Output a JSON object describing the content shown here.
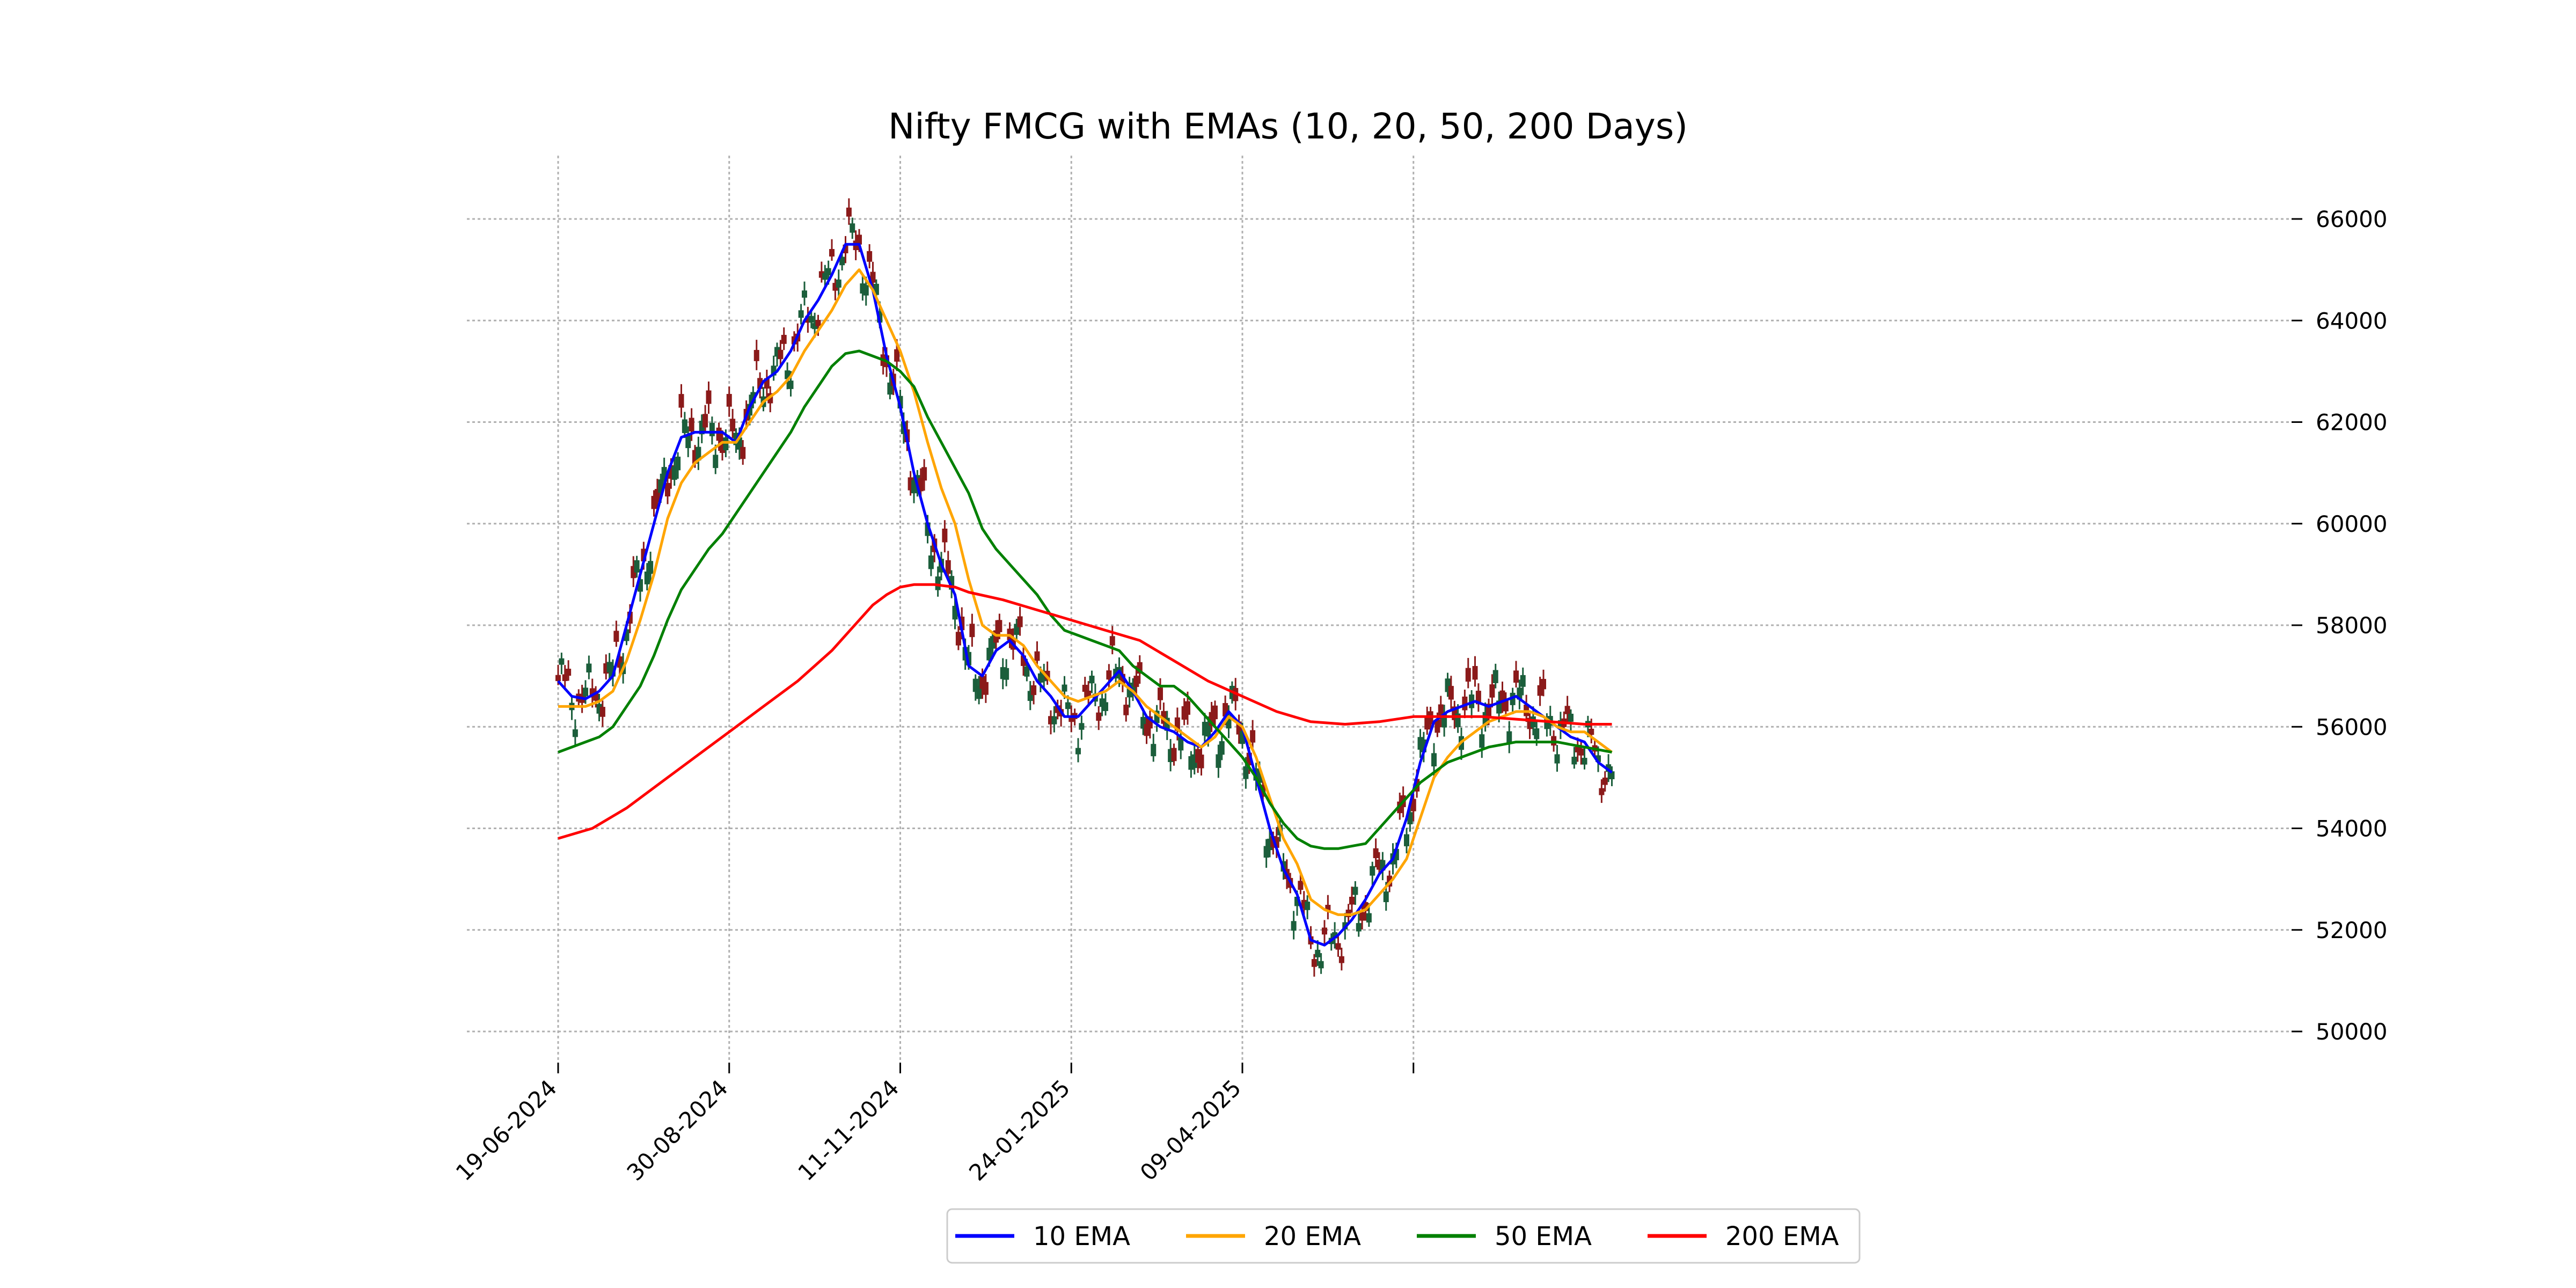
{
  "chart_data": {
    "type": "line",
    "title": "Nifty FMCG with EMAs (10, 20, 50, 200 Days)",
    "xlabel": "",
    "ylabel": "",
    "ylim": [
      49500,
      67200
    ],
    "y_ticks": [
      50000,
      52000,
      54000,
      56000,
      58000,
      60000,
      62000,
      64000,
      66000
    ],
    "x_ticks": [
      "19-06-2024",
      "30-08-2024",
      "11-11-2024",
      "24-01-2025",
      "09-04-2025",
      ""
    ],
    "x_tick_idx": [
      0,
      50,
      100,
      150,
      200,
      250
    ],
    "grid": true,
    "legend_position": "bottom-center",
    "x_count": 247,
    "candle_colors": {
      "up": "#1b5e3b",
      "down": "#8b1a1a"
    },
    "series": [
      {
        "name": "10 EMA",
        "color": "#0000ff",
        "points": [
          [
            0,
            56900
          ],
          [
            4,
            56600
          ],
          [
            8,
            56550
          ],
          [
            12,
            56700
          ],
          [
            16,
            57000
          ],
          [
            20,
            58000
          ],
          [
            24,
            59000
          ],
          [
            28,
            60000
          ],
          [
            32,
            61000
          ],
          [
            36,
            61700
          ],
          [
            40,
            61800
          ],
          [
            44,
            61800
          ],
          [
            48,
            61800
          ],
          [
            52,
            61600
          ],
          [
            56,
            62300
          ],
          [
            60,
            62800
          ],
          [
            64,
            63000
          ],
          [
            68,
            63400
          ],
          [
            72,
            64000
          ],
          [
            76,
            64400
          ],
          [
            80,
            64900
          ],
          [
            84,
            65500
          ],
          [
            88,
            65500
          ],
          [
            92,
            64600
          ],
          [
            96,
            63300
          ],
          [
            100,
            62300
          ],
          [
            104,
            61000
          ],
          [
            108,
            60000
          ],
          [
            112,
            59200
          ],
          [
            116,
            58600
          ],
          [
            120,
            57200
          ],
          [
            124,
            57000
          ],
          [
            128,
            57500
          ],
          [
            132,
            57700
          ],
          [
            136,
            57400
          ],
          [
            140,
            56900
          ],
          [
            144,
            56600
          ],
          [
            148,
            56200
          ],
          [
            152,
            56200
          ],
          [
            156,
            56500
          ],
          [
            160,
            56800
          ],
          [
            164,
            57100
          ],
          [
            168,
            56700
          ],
          [
            172,
            56200
          ],
          [
            176,
            56000
          ],
          [
            180,
            55900
          ],
          [
            184,
            55700
          ],
          [
            188,
            55600
          ],
          [
            192,
            55900
          ],
          [
            196,
            56300
          ],
          [
            200,
            56000
          ],
          [
            204,
            55000
          ],
          [
            208,
            54000
          ],
          [
            212,
            53200
          ],
          [
            216,
            52700
          ],
          [
            220,
            51800
          ],
          [
            224,
            51700
          ],
          [
            228,
            51900
          ],
          [
            232,
            52200
          ],
          [
            236,
            52600
          ],
          [
            240,
            53100
          ],
          [
            244,
            53400
          ],
          [
            248,
            54200
          ],
          [
            252,
            55300
          ],
          [
            256,
            56100
          ],
          [
            260,
            56300
          ],
          [
            264,
            56400
          ],
          [
            268,
            56500
          ],
          [
            272,
            56400
          ],
          [
            276,
            56500
          ],
          [
            280,
            56600
          ],
          [
            284,
            56400
          ],
          [
            288,
            56200
          ],
          [
            292,
            56000
          ],
          [
            296,
            55800
          ],
          [
            300,
            55700
          ],
          [
            304,
            55300
          ],
          [
            308,
            55100
          ]
        ]
      },
      {
        "name": "20 EMA",
        "color": "#ffa500",
        "points": [
          [
            0,
            56400
          ],
          [
            4,
            56400
          ],
          [
            8,
            56400
          ],
          [
            12,
            56500
          ],
          [
            16,
            56700
          ],
          [
            20,
            57300
          ],
          [
            24,
            58100
          ],
          [
            28,
            59000
          ],
          [
            32,
            60100
          ],
          [
            36,
            60800
          ],
          [
            40,
            61200
          ],
          [
            44,
            61400
          ],
          [
            48,
            61600
          ],
          [
            52,
            61600
          ],
          [
            56,
            62000
          ],
          [
            60,
            62400
          ],
          [
            64,
            62600
          ],
          [
            68,
            62900
          ],
          [
            72,
            63400
          ],
          [
            76,
            63800
          ],
          [
            80,
            64200
          ],
          [
            84,
            64700
          ],
          [
            88,
            65000
          ],
          [
            92,
            64600
          ],
          [
            96,
            64000
          ],
          [
            100,
            63400
          ],
          [
            104,
            62600
          ],
          [
            108,
            61600
          ],
          [
            112,
            60700
          ],
          [
            116,
            60000
          ],
          [
            120,
            58900
          ],
          [
            124,
            58000
          ],
          [
            128,
            57800
          ],
          [
            132,
            57800
          ],
          [
            136,
            57600
          ],
          [
            140,
            57200
          ],
          [
            144,
            56900
          ],
          [
            148,
            56600
          ],
          [
            152,
            56500
          ],
          [
            156,
            56600
          ],
          [
            160,
            56700
          ],
          [
            164,
            56900
          ],
          [
            168,
            56700
          ],
          [
            172,
            56400
          ],
          [
            176,
            56200
          ],
          [
            180,
            56000
          ],
          [
            184,
            55800
          ],
          [
            188,
            55600
          ],
          [
            192,
            55800
          ],
          [
            196,
            56200
          ],
          [
            200,
            56000
          ],
          [
            204,
            55400
          ],
          [
            208,
            54600
          ],
          [
            212,
            53800
          ],
          [
            216,
            53300
          ],
          [
            220,
            52600
          ],
          [
            224,
            52400
          ],
          [
            228,
            52300
          ],
          [
            232,
            52300
          ],
          [
            236,
            52400
          ],
          [
            240,
            52700
          ],
          [
            244,
            53000
          ],
          [
            248,
            53400
          ],
          [
            252,
            54200
          ],
          [
            256,
            55000
          ],
          [
            260,
            55400
          ],
          [
            264,
            55700
          ],
          [
            268,
            55900
          ],
          [
            272,
            56100
          ],
          [
            276,
            56200
          ],
          [
            280,
            56300
          ],
          [
            284,
            56300
          ],
          [
            288,
            56200
          ],
          [
            292,
            56000
          ],
          [
            296,
            55900
          ],
          [
            300,
            55900
          ],
          [
            304,
            55700
          ],
          [
            308,
            55500
          ]
        ]
      },
      {
        "name": "50 EMA",
        "color": "#008000",
        "points": [
          [
            0,
            55500
          ],
          [
            4,
            55600
          ],
          [
            8,
            55700
          ],
          [
            12,
            55800
          ],
          [
            16,
            56000
          ],
          [
            20,
            56400
          ],
          [
            24,
            56800
          ],
          [
            28,
            57400
          ],
          [
            32,
            58100
          ],
          [
            36,
            58700
          ],
          [
            40,
            59100
          ],
          [
            44,
            59500
          ],
          [
            48,
            59800
          ],
          [
            52,
            60200
          ],
          [
            56,
            60600
          ],
          [
            60,
            61000
          ],
          [
            64,
            61400
          ],
          [
            68,
            61800
          ],
          [
            72,
            62300
          ],
          [
            76,
            62700
          ],
          [
            80,
            63100
          ],
          [
            84,
            63350
          ],
          [
            88,
            63400
          ],
          [
            92,
            63300
          ],
          [
            96,
            63200
          ],
          [
            100,
            63000
          ],
          [
            104,
            62700
          ],
          [
            108,
            62100
          ],
          [
            112,
            61600
          ],
          [
            116,
            61100
          ],
          [
            120,
            60600
          ],
          [
            124,
            59900
          ],
          [
            128,
            59500
          ],
          [
            132,
            59200
          ],
          [
            136,
            58900
          ],
          [
            140,
            58600
          ],
          [
            144,
            58200
          ],
          [
            148,
            57900
          ],
          [
            152,
            57800
          ],
          [
            156,
            57700
          ],
          [
            160,
            57600
          ],
          [
            164,
            57500
          ],
          [
            168,
            57200
          ],
          [
            172,
            57000
          ],
          [
            176,
            56800
          ],
          [
            180,
            56800
          ],
          [
            184,
            56600
          ],
          [
            188,
            56300
          ],
          [
            192,
            56000
          ],
          [
            196,
            55700
          ],
          [
            200,
            55400
          ],
          [
            204,
            55000
          ],
          [
            208,
            54500
          ],
          [
            212,
            54100
          ],
          [
            216,
            53800
          ],
          [
            220,
            53650
          ],
          [
            224,
            53600
          ],
          [
            228,
            53600
          ],
          [
            232,
            53650
          ],
          [
            236,
            53700
          ],
          [
            240,
            54000
          ],
          [
            244,
            54300
          ],
          [
            248,
            54600
          ],
          [
            252,
            54900
          ],
          [
            256,
            55100
          ],
          [
            260,
            55300
          ],
          [
            264,
            55400
          ],
          [
            268,
            55500
          ],
          [
            272,
            55600
          ],
          [
            276,
            55650
          ],
          [
            280,
            55700
          ],
          [
            284,
            55700
          ],
          [
            288,
            55700
          ],
          [
            292,
            55700
          ],
          [
            296,
            55650
          ],
          [
            300,
            55600
          ],
          [
            304,
            55550
          ],
          [
            308,
            55500
          ]
        ]
      },
      {
        "name": "200 EMA",
        "color": "#ff0000",
        "points": [
          [
            0,
            53800
          ],
          [
            10,
            54000
          ],
          [
            20,
            54400
          ],
          [
            30,
            54900
          ],
          [
            40,
            55400
          ],
          [
            50,
            55900
          ],
          [
            60,
            56400
          ],
          [
            70,
            56900
          ],
          [
            80,
            57500
          ],
          [
            88,
            58100
          ],
          [
            92,
            58400
          ],
          [
            96,
            58600
          ],
          [
            100,
            58750
          ],
          [
            104,
            58800
          ],
          [
            110,
            58800
          ],
          [
            116,
            58750
          ],
          [
            120,
            58650
          ],
          [
            130,
            58500
          ],
          [
            140,
            58300
          ],
          [
            150,
            58100
          ],
          [
            160,
            57900
          ],
          [
            170,
            57700
          ],
          [
            180,
            57300
          ],
          [
            190,
            56900
          ],
          [
            200,
            56600
          ],
          [
            210,
            56300
          ],
          [
            220,
            56100
          ],
          [
            230,
            56050
          ],
          [
            240,
            56100
          ],
          [
            250,
            56200
          ],
          [
            260,
            56200
          ],
          [
            270,
            56200
          ],
          [
            280,
            56150
          ],
          [
            290,
            56100
          ],
          [
            300,
            56050
          ],
          [
            308,
            56050
          ]
        ]
      }
    ]
  }
}
